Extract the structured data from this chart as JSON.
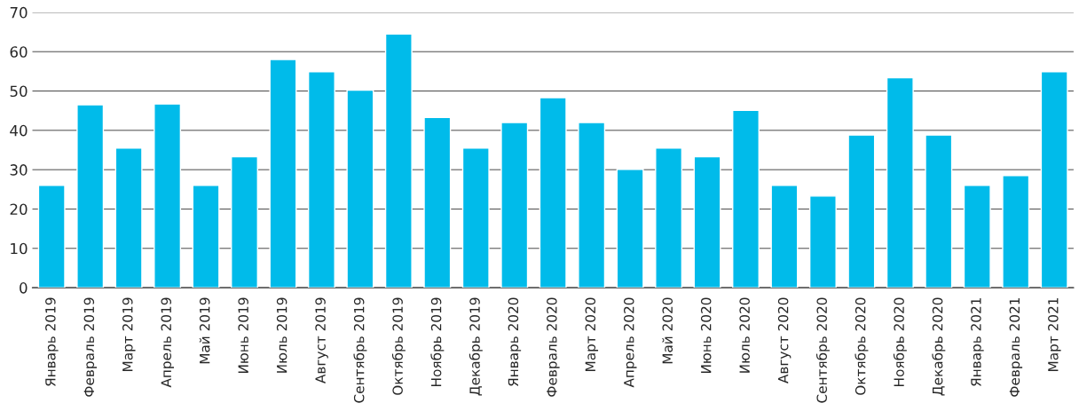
{
  "chart_data": {
    "type": "bar",
    "categories": [
      "Январь 2019",
      "Февраль 2019",
      "Март 2019",
      "Апрель 2019",
      "Май 2019",
      "Июнь 2019",
      "Июль 2019",
      "Август 2019",
      "Сентябрь 2019",
      "Октябрь 2019",
      "Ноябрь 2019",
      "Декабрь 2019",
      "Январь 2020",
      "Февраль 2020",
      "Март 2020",
      "Апрель 2020",
      "Май 2020",
      "Июнь 2020",
      "Июль 2020",
      "Август 2020",
      "Сентябрь 2020",
      "Октябрь 2020",
      "Ноябрь 2020",
      "Декабрь 2020",
      "Январь 2021",
      "Февраль 2021",
      "Март 2021"
    ],
    "values": [
      26,
      46.5,
      35.5,
      46.7,
      26,
      33.3,
      58,
      54.9,
      50.2,
      64.5,
      43.3,
      35.5,
      42,
      48.3,
      42,
      30.1,
      35.5,
      33.3,
      45.1,
      26,
      23.3,
      38.8,
      53.4,
      38.8,
      26,
      28.5,
      54.9
    ],
    "color": "#00bbea",
    "ylim": [
      0,
      70
    ],
    "yticks": [
      0,
      10,
      20,
      30,
      40,
      50,
      60,
      70
    ],
    "grid": "y"
  }
}
